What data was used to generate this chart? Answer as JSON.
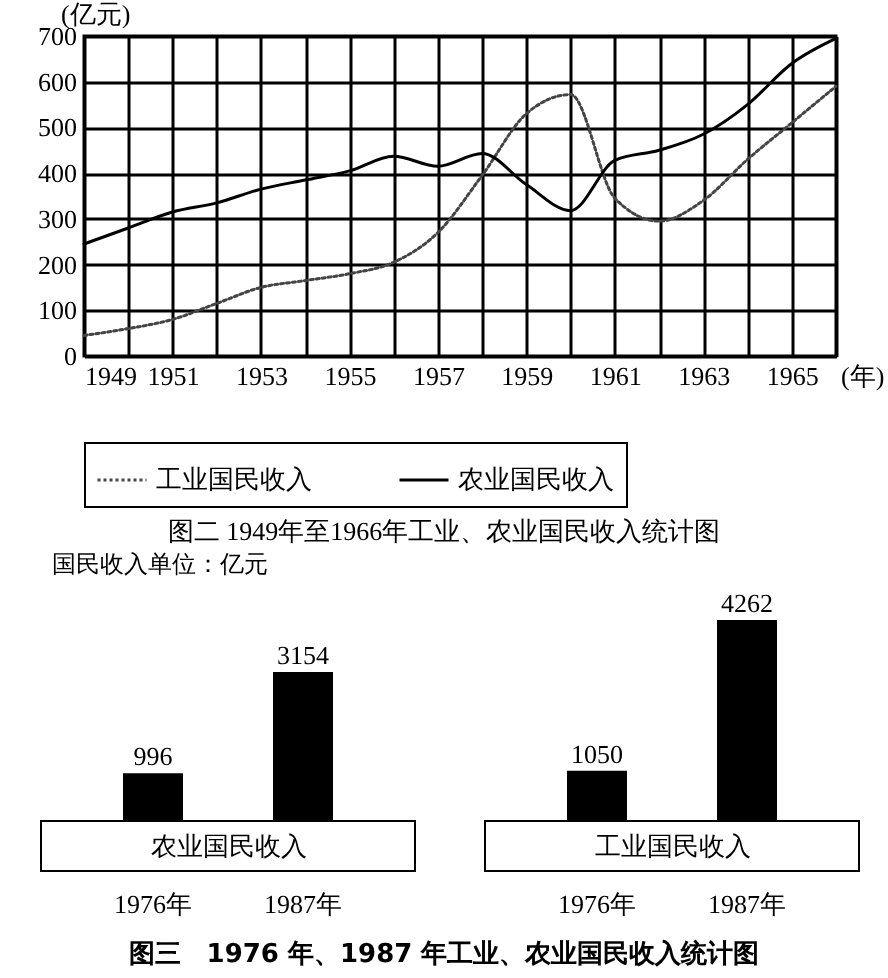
{
  "chart_data": [
    {
      "type": "line",
      "title": "图二 1949年至1966年工业、农业国民收入统计图",
      "xlabel": "(年)",
      "ylabel": "(亿元)",
      "x": [
        1949,
        1950,
        1951,
        1952,
        1953,
        1954,
        1955,
        1956,
        1957,
        1958,
        1959,
        1960,
        1961,
        1962,
        1963,
        1964,
        1965,
        1966
      ],
      "series": [
        {
          "name": "工业国民收入",
          "color": "#444444",
          "line_style": "dotted",
          "values": [
            45,
            60,
            80,
            115,
            150,
            165,
            180,
            205,
            270,
            395,
            530,
            572,
            345,
            295,
            340,
            430,
            510,
            590
          ]
        },
        {
          "name": "农业国民收入",
          "color": "#000000",
          "line_style": "solid",
          "values": [
            245,
            280,
            315,
            335,
            365,
            385,
            405,
            437,
            415,
            443,
            375,
            318,
            428,
            450,
            485,
            550,
            640,
            695
          ]
        }
      ],
      "xlim": [
        1949,
        1966
      ],
      "xticks": [
        1949,
        {
          "value": 1950,
          "label": null
        },
        1951,
        {
          "value": 1952,
          "label": null
        },
        1953,
        {
          "value": 1954,
          "label": null
        },
        1955,
        {
          "value": 1956,
          "label": null
        },
        1957,
        {
          "value": 1958,
          "label": null
        },
        1959,
        {
          "value": 1960,
          "label": null
        },
        1961,
        {
          "value": 1962,
          "label": null
        },
        1963,
        {
          "value": 1964,
          "label": null
        },
        1965,
        {
          "value": 1966,
          "label": null
        }
      ],
      "ylim": [
        0,
        700
      ],
      "yticks": [
        0,
        100,
        200,
        300,
        400,
        500,
        600,
        700
      ],
      "grid": true,
      "legend": "bottom",
      "marker": "none"
    },
    {
      "type": "bar",
      "categories": [
        "1976年",
        "1987年"
      ],
      "values": [
        996,
        3154
      ],
      "color": "#000000",
      "data_labels": true,
      "xlabel": "农业国民收入",
      "annotations": [
        "国民收入单位：亿元",
        "图三　1976 年、1987 年工业、农业国民收入统计图"
      ]
    },
    {
      "type": "bar",
      "categories": [
        "1976年",
        "1987年"
      ],
      "values": [
        1050,
        4262
      ],
      "color": "#000000",
      "data_labels": true,
      "xlabel": "工业国民收入"
    }
  ]
}
